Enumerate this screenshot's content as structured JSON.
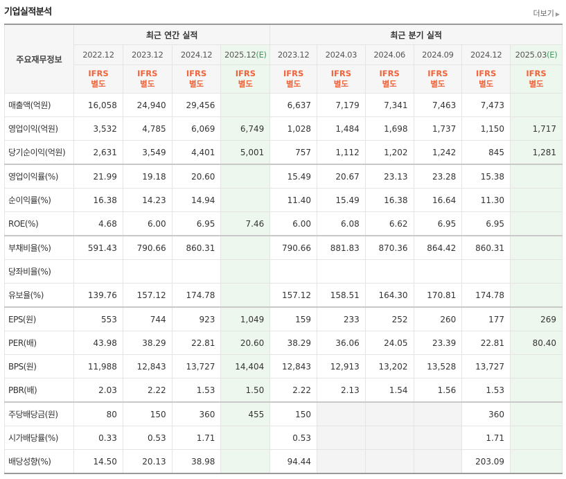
{
  "header": {
    "title": "기업실적분석",
    "more_label": "더보기"
  },
  "table": {
    "row_header_label": "주요재무정보",
    "groups": {
      "annual": "최근 연간 실적",
      "quarterly": "최근 분기 실적"
    },
    "periods": [
      "2022.12",
      "2023.12",
      "2024.12",
      "2025.12(E)",
      "2023.12",
      "2024.03",
      "2024.06",
      "2024.09",
      "2024.12",
      "2025.03(E)"
    ],
    "ifrs_label_1": "IFRS",
    "ifrs_label_2": "별도",
    "rows": [
      {
        "label": "매출액(억원)",
        "values": [
          "16,058",
          "24,940",
          "29,456",
          "",
          "6,637",
          "7,179",
          "7,341",
          "7,463",
          "7,473",
          ""
        ]
      },
      {
        "label": "영업이익(억원)",
        "values": [
          "3,532",
          "4,785",
          "6,069",
          "6,749",
          "1,028",
          "1,484",
          "1,698",
          "1,737",
          "1,150",
          "1,717"
        ]
      },
      {
        "label": "당기순이익(억원)",
        "values": [
          "2,631",
          "3,549",
          "4,401",
          "5,001",
          "757",
          "1,112",
          "1,202",
          "1,242",
          "845",
          "1,281"
        ]
      },
      {
        "label": "영업이익률(%)",
        "values": [
          "21.99",
          "19.18",
          "20.60",
          "",
          "15.49",
          "20.67",
          "23.13",
          "23.28",
          "15.38",
          ""
        ]
      },
      {
        "label": "순이익률(%)",
        "values": [
          "16.38",
          "14.23",
          "14.94",
          "",
          "11.40",
          "15.49",
          "16.38",
          "16.64",
          "11.30",
          ""
        ]
      },
      {
        "label": "ROE(%)",
        "values": [
          "4.68",
          "6.00",
          "6.95",
          "7.46",
          "6.00",
          "6.08",
          "6.62",
          "6.95",
          "6.95",
          ""
        ]
      },
      {
        "label": "부채비율(%)",
        "values": [
          "591.43",
          "790.66",
          "860.31",
          "",
          "790.66",
          "881.83",
          "870.36",
          "864.42",
          "860.31",
          ""
        ]
      },
      {
        "label": "당좌비율(%)",
        "values": [
          "",
          "",
          "",
          "",
          "",
          "",
          "",
          "",
          "",
          ""
        ]
      },
      {
        "label": "유보율(%)",
        "values": [
          "139.76",
          "157.12",
          "174.78",
          "",
          "157.12",
          "158.51",
          "164.30",
          "170.81",
          "174.78",
          ""
        ]
      },
      {
        "label": "EPS(원)",
        "values": [
          "553",
          "744",
          "923",
          "1,049",
          "159",
          "233",
          "252",
          "260",
          "177",
          "269"
        ]
      },
      {
        "label": "PER(배)",
        "values": [
          "43.98",
          "38.29",
          "22.81",
          "20.60",
          "38.29",
          "36.06",
          "24.05",
          "23.39",
          "22.81",
          "80.40"
        ]
      },
      {
        "label": "BPS(원)",
        "values": [
          "11,988",
          "12,843",
          "13,727",
          "14,404",
          "12,843",
          "12,913",
          "13,202",
          "13,528",
          "13,727",
          ""
        ]
      },
      {
        "label": "PBR(배)",
        "values": [
          "2.03",
          "2.22",
          "1.53",
          "1.50",
          "2.22",
          "2.13",
          "1.54",
          "1.56",
          "1.53",
          ""
        ]
      },
      {
        "label": "주당배당금(원)",
        "values": [
          "80",
          "150",
          "360",
          "455",
          "150",
          "",
          "",
          "",
          "360",
          ""
        ]
      },
      {
        "label": "시가배당률(%)",
        "values": [
          "0.33",
          "0.53",
          "1.71",
          "",
          "0.53",
          "",
          "",
          "",
          "1.71",
          ""
        ]
      },
      {
        "label": "배당성향(%)",
        "values": [
          "14.50",
          "20.13",
          "38.98",
          "",
          "94.44",
          "",
          "",
          "",
          "203.09",
          ""
        ]
      }
    ]
  }
}
